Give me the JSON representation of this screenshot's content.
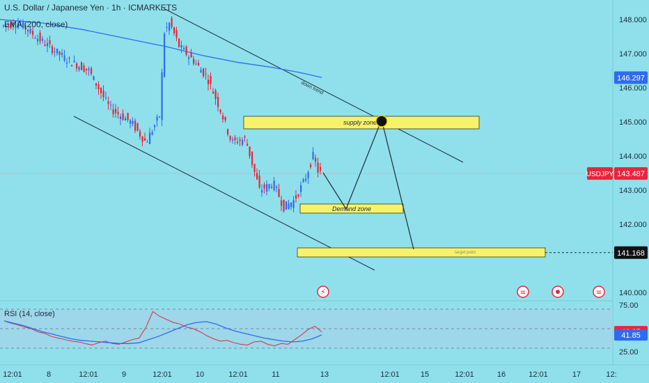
{
  "header": {
    "title": "U.S. Dollar / Japanese Yen · 1h · ICMARKETS",
    "ema_label": "EMA (200, close)",
    "rsi_label": "RSI (14, close)"
  },
  "colors": {
    "background": "#8fe0ea",
    "up": "#2f6bf0",
    "down": "#e8253b",
    "ema": "#2f6bf0",
    "rsi": "#e8253b",
    "rsi_ma": "#2f6bf0",
    "zone": "#f7f26a",
    "price_badge": "#e8253b",
    "ema_badge": "#2f6bf0"
  },
  "chart_data": [
    {
      "type": "candlestick",
      "symbol": "USDJPY",
      "ylim": [
        140,
        148
      ],
      "yticks": [
        "148.000",
        "147.000",
        "146.000",
        "145.000",
        "144.000",
        "143.000",
        "142.000",
        "140.000"
      ],
      "xticks": [
        "12:01",
        "8",
        "12:01",
        "9",
        "12:01",
        "10",
        "12:01",
        "11",
        "13",
        "12:01",
        "15",
        "12:01",
        "16",
        "12:01",
        "17",
        "12:"
      ],
      "last_price": "143.487",
      "last_price_value": 143.487,
      "ema_value": "146.297",
      "ema_value_num": 146.297,
      "target_value": "141.168",
      "target_value_num": 141.168,
      "ema_series": [
        148.0,
        147.9,
        147.7,
        147.45,
        147.2,
        146.95,
        146.75,
        146.6,
        146.45,
        146.3
      ],
      "annotations": {
        "supply_zone": "supply zone",
        "demand_zone": "Demand zone",
        "down_trend": "down trend",
        "target_point": "target point"
      },
      "price_label": "USDJPY"
    },
    {
      "type": "line",
      "name": "RSI (14, close)",
      "ylim": [
        25,
        75
      ],
      "yticks": [
        "75.00",
        "25.00"
      ],
      "rsi_value": "46.37",
      "rsi_ma_value": "41.85",
      "rsi": [
        60,
        57,
        55,
        52,
        50,
        46,
        44,
        40,
        38,
        36,
        34,
        33,
        31,
        29,
        32,
        34,
        31,
        30,
        33,
        36,
        38,
        52,
        72,
        66,
        62,
        58,
        56,
        52,
        50,
        46,
        41,
        37,
        34,
        35,
        32,
        30,
        29,
        33,
        34,
        30,
        28,
        31,
        30,
        36,
        42,
        49,
        53,
        46
      ],
      "rsi_ma": [
        60,
        57,
        54,
        50,
        46,
        43,
        40,
        37,
        35,
        34,
        33,
        32,
        31,
        31,
        32,
        36,
        40,
        45,
        50,
        55,
        58,
        59,
        56,
        51,
        47,
        44,
        41,
        38,
        36,
        34,
        33,
        34,
        37,
        42
      ]
    }
  ]
}
